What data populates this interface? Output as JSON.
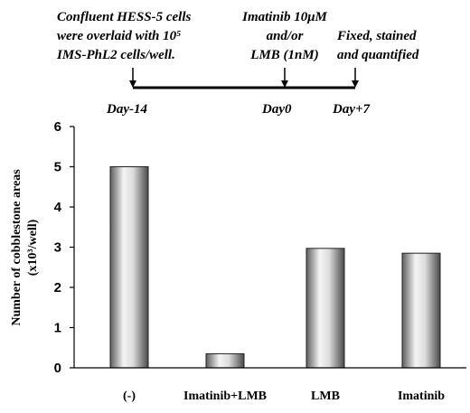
{
  "timeline": {
    "notes": [
      {
        "lines": [
          "Confluent HESS-5 cells",
          "were overlaid with 10⁵",
          "IMS-PhL2 cells/well."
        ]
      },
      {
        "lines": [
          "Imatinib 10μM",
          "and/or",
          "LMB (1nM)"
        ]
      },
      {
        "lines": [
          "Fixed, stained",
          "and quantified"
        ]
      }
    ],
    "days": [
      "Day-14",
      "Day0",
      "Day+7"
    ]
  },
  "chart_data": {
    "type": "bar",
    "categories": [
      "(-)",
      "Imatinib+LMB",
      "LMB",
      "Imatinib"
    ],
    "values": [
      5.0,
      0.35,
      2.97,
      2.85
    ],
    "title": "",
    "xlabel": "",
    "ylabel_lines": [
      "Number of cobblestone areas",
      "(x10³/well)"
    ],
    "ylim": [
      0,
      6
    ],
    "yticks": [
      "0",
      "1",
      "2",
      "3",
      "4",
      "5",
      "6"
    ],
    "grid": false,
    "bar_style": "cylinder-gray"
  }
}
